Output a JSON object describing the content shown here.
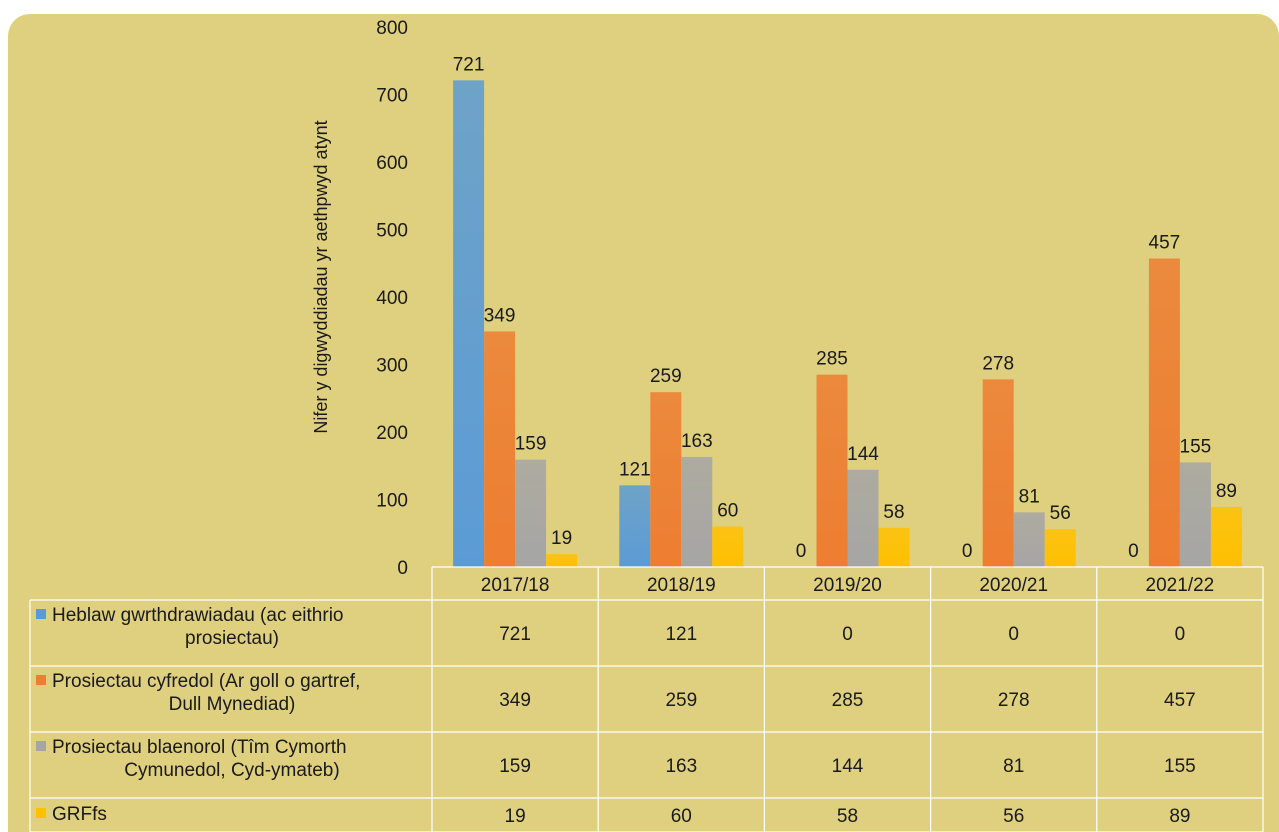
{
  "colors": {
    "background": "#dfd07f",
    "series": [
      "#5b9bd5",
      "#ed7d31",
      "#a5a5a5",
      "#ffc000"
    ]
  },
  "chart_data": {
    "type": "bar",
    "title": "",
    "ylabel": "Nifer y digwyddiadau yr aethpwyd atynt",
    "xlabel": "",
    "ylim": [
      0,
      800
    ],
    "yticks": [
      0,
      100,
      200,
      300,
      400,
      500,
      600,
      700,
      800
    ],
    "grid": false,
    "legend": "data table",
    "categories": [
      "2017/18",
      "2018/19",
      "2019/20",
      "2020/21",
      "2021/22"
    ],
    "series": [
      {
        "name": "Heblaw gwrthdrawiadau (ac eithrio prosiectau)",
        "name_lines": [
          "Heblaw gwrthdrawiadau (ac eithrio",
          "prosiectau)"
        ],
        "values": [
          721,
          121,
          0,
          0,
          0
        ]
      },
      {
        "name": "Prosiectau cyfredol (Ar goll o gartref, Dull Mynediad)",
        "name_lines": [
          "Prosiectau cyfredol (Ar goll o gartref,",
          "Dull Mynediad)"
        ],
        "values": [
          349,
          259,
          285,
          278,
          457
        ]
      },
      {
        "name": "Prosiectau blaenorol (Tîm Cymorth Cymunedol, Cyd-ymateb)",
        "name_lines": [
          "Prosiectau blaenorol (Tîm Cymorth",
          "Cymunedol, Cyd-ymateb)"
        ],
        "values": [
          159,
          163,
          144,
          81,
          155
        ]
      },
      {
        "name": "GRFfs",
        "name_lines": [
          "GRFfs"
        ],
        "values": [
          19,
          60,
          58,
          56,
          89
        ]
      }
    ]
  }
}
